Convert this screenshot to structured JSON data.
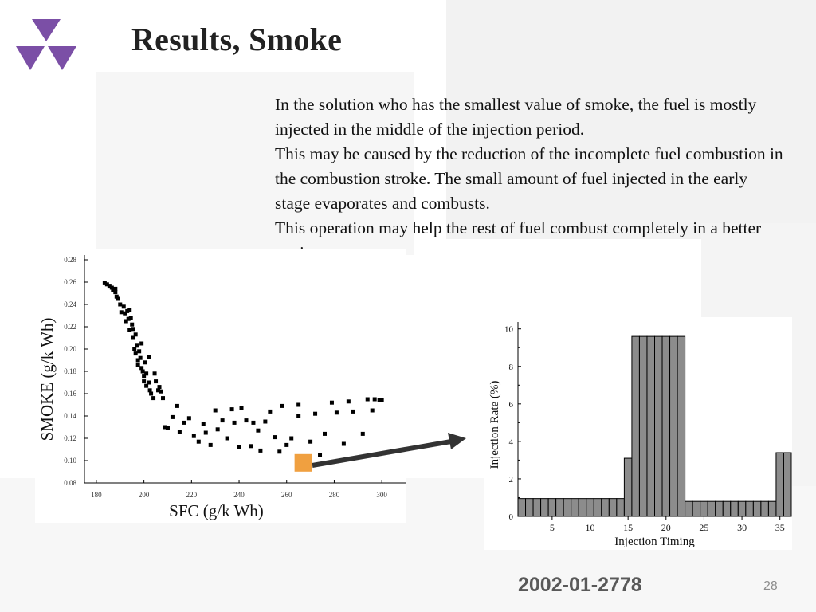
{
  "slide": {
    "title": "Results, Smoke",
    "paragraphs": [
      "In the solution who has the smallest value of smoke, the fuel is mostly injected in the middle of the injection period.",
      "This may be caused by the reduction of the incomplete fuel combustion in the combustion stroke.  The small amount of fuel injected in the early stage evaporates and combusts.",
      "This operation may help the rest of fuel combust completely in a better environment."
    ],
    "footer_code": "2002-01-2778",
    "page_number": "28",
    "accent_color": "#7b4fa6",
    "highlight_color": "#f0a040"
  },
  "chart_data": [
    {
      "type": "scatter",
      "xlabel": "SFC (g/k Wh)",
      "ylabel": "SMOKE (g/k Wh)",
      "xlim": [
        175,
        310
      ],
      "ylim": [
        0.08,
        0.28
      ],
      "xticks": [
        "180",
        "200",
        "220",
        "240",
        "260",
        "280",
        "300"
      ],
      "yticks": [
        "0.08",
        "0.10",
        "0.12",
        "0.14",
        "0.16",
        "0.18",
        "0.20",
        "0.22",
        "0.24",
        "0.26",
        "0.28"
      ],
      "marker_color": "#000000",
      "points": [
        [
          183.5,
          0.259
        ],
        [
          184.5,
          0.258
        ],
        [
          185.5,
          0.256
        ],
        [
          186.5,
          0.255
        ],
        [
          187,
          0.253
        ],
        [
          188,
          0.254
        ],
        [
          188,
          0.251
        ],
        [
          188.5,
          0.247
        ],
        [
          189,
          0.245
        ],
        [
          190,
          0.24
        ],
        [
          190.5,
          0.233
        ],
        [
          191.5,
          0.238
        ],
        [
          192,
          0.232
        ],
        [
          192.5,
          0.225
        ],
        [
          193,
          0.234
        ],
        [
          193.5,
          0.227
        ],
        [
          194,
          0.235
        ],
        [
          194,
          0.217
        ],
        [
          194.5,
          0.228
        ],
        [
          195,
          0.222
        ],
        [
          195.5,
          0.218
        ],
        [
          195.5,
          0.21
        ],
        [
          196,
          0.2
        ],
        [
          196.5,
          0.213
        ],
        [
          196.5,
          0.196
        ],
        [
          197,
          0.203
        ],
        [
          197.5,
          0.19
        ],
        [
          197.5,
          0.186
        ],
        [
          198,
          0.198
        ],
        [
          198.5,
          0.192
        ],
        [
          199,
          0.205
        ],
        [
          199,
          0.183
        ],
        [
          199.5,
          0.18
        ],
        [
          200,
          0.176
        ],
        [
          200,
          0.171
        ],
        [
          200.5,
          0.188
        ],
        [
          201,
          0.178
        ],
        [
          201,
          0.167
        ],
        [
          202,
          0.193
        ],
        [
          202,
          0.17
        ],
        [
          202.5,
          0.163
        ],
        [
          203,
          0.16
        ],
        [
          204,
          0.156
        ],
        [
          204.5,
          0.178
        ],
        [
          205,
          0.171
        ],
        [
          206,
          0.163
        ],
        [
          206.5,
          0.166
        ],
        [
          207,
          0.162
        ],
        [
          208,
          0.156
        ],
        [
          209,
          0.13
        ],
        [
          210,
          0.129
        ],
        [
          212,
          0.139
        ],
        [
          214,
          0.149
        ],
        [
          215,
          0.126
        ],
        [
          217,
          0.134
        ],
        [
          219,
          0.138
        ],
        [
          221,
          0.122
        ],
        [
          223,
          0.117
        ],
        [
          225,
          0.133
        ],
        [
          226,
          0.125
        ],
        [
          228,
          0.114
        ],
        [
          230,
          0.145
        ],
        [
          231,
          0.128
        ],
        [
          233,
          0.136
        ],
        [
          235,
          0.12
        ],
        [
          237,
          0.146
        ],
        [
          238,
          0.134
        ],
        [
          240,
          0.112
        ],
        [
          241,
          0.147
        ],
        [
          243,
          0.136
        ],
        [
          245,
          0.113
        ],
        [
          246,
          0.134
        ],
        [
          248,
          0.127
        ],
        [
          249,
          0.109
        ],
        [
          251,
          0.135
        ],
        [
          253,
          0.144
        ],
        [
          255,
          0.121
        ],
        [
          257,
          0.108
        ],
        [
          258,
          0.149
        ],
        [
          260,
          0.114
        ],
        [
          262,
          0.12
        ],
        [
          265,
          0.14
        ],
        [
          265,
          0.15
        ],
        [
          268,
          0.1
        ],
        [
          270,
          0.117
        ],
        [
          272,
          0.142
        ],
        [
          274,
          0.105
        ],
        [
          276,
          0.124
        ],
        [
          279,
          0.152
        ],
        [
          281,
          0.143
        ],
        [
          284,
          0.115
        ],
        [
          286,
          0.153
        ],
        [
          288,
          0.144
        ],
        [
          292,
          0.124
        ],
        [
          294,
          0.155
        ],
        [
          296,
          0.145
        ],
        [
          297,
          0.155
        ],
        [
          299,
          0.154
        ],
        [
          300,
          0.154
        ]
      ],
      "highlight": {
        "x": 267,
        "y": 0.098
      }
    },
    {
      "type": "bar",
      "xlabel": "Injection Timing",
      "ylabel": "Injection Rate (%)",
      "xlim": [
        0.5,
        36.5
      ],
      "ylim": [
        0,
        10.2
      ],
      "xticks": [
        "5",
        "10",
        "15",
        "20",
        "25",
        "30",
        "35"
      ],
      "yticks": [
        "0",
        "2",
        "4",
        "6",
        "8",
        "10"
      ],
      "bar_color": "#8c8c8c",
      "categories": [
        1,
        2,
        3,
        4,
        5,
        6,
        7,
        8,
        9,
        10,
        11,
        12,
        13,
        14,
        15,
        16,
        17,
        18,
        19,
        20,
        21,
        22,
        23,
        24,
        25,
        26,
        27,
        28,
        29,
        30,
        31,
        32,
        33,
        34,
        35,
        36
      ],
      "values": [
        0.95,
        0.95,
        0.95,
        0.95,
        0.95,
        0.95,
        0.95,
        0.95,
        0.95,
        0.95,
        0.95,
        0.95,
        0.95,
        0.95,
        3.1,
        9.6,
        9.6,
        9.6,
        9.6,
        9.6,
        9.6,
        9.6,
        0.8,
        0.8,
        0.8,
        0.8,
        0.8,
        0.8,
        0.8,
        0.8,
        0.8,
        0.8,
        0.8,
        0.8,
        3.4,
        3.4
      ]
    }
  ]
}
